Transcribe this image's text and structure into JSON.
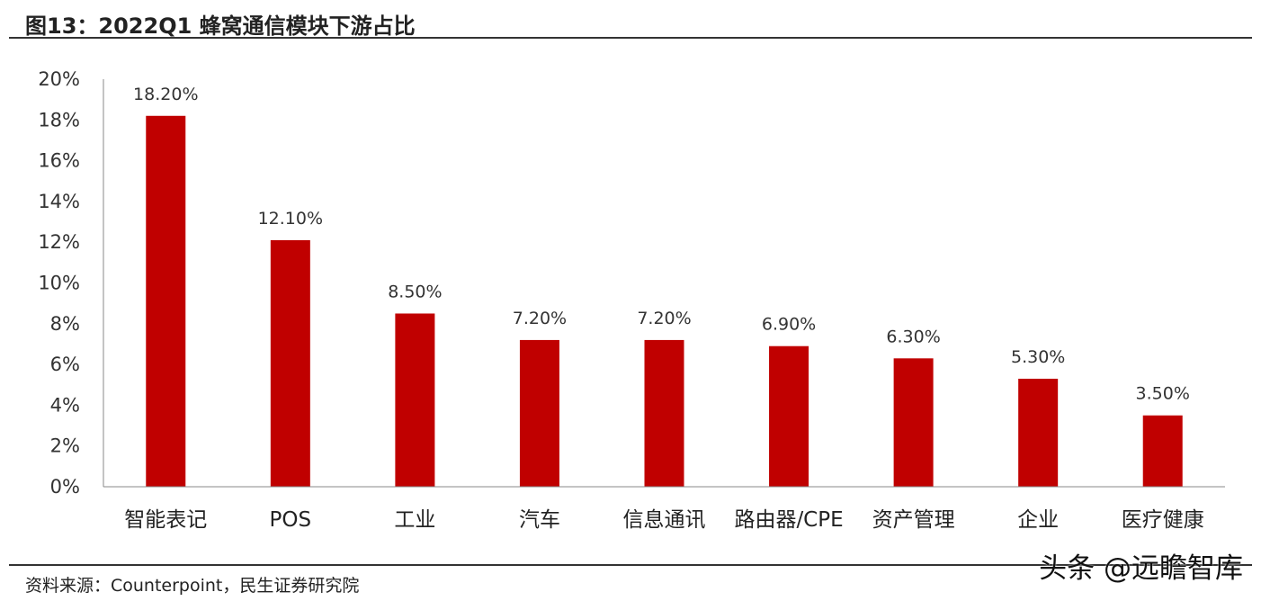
{
  "header": {
    "title": "图13：2022Q1 蜂窝通信模块下游占比"
  },
  "footer": {
    "source": "资料来源：Counterpoint，民生证券研究院",
    "watermark": "头条 @远瞻智库"
  },
  "colors": {
    "bar": "#C00000",
    "axis": "#888888"
  },
  "chart_data": {
    "type": "bar",
    "categories": [
      "智能表记",
      "POS",
      "工业",
      "汽车",
      "信息通讯",
      "路由器/CPE",
      "资产管理",
      "企业",
      "医疗健康"
    ],
    "values": [
      18.2,
      12.1,
      8.5,
      7.2,
      7.2,
      6.9,
      6.3,
      5.3,
      3.5
    ],
    "data_labels": [
      "18.20%",
      "12.10%",
      "8.50%",
      "7.20%",
      "7.20%",
      "6.90%",
      "6.30%",
      "5.30%",
      "3.50%"
    ],
    "y_ticks": [
      0,
      2,
      4,
      6,
      8,
      10,
      12,
      14,
      16,
      18,
      20
    ],
    "y_tick_labels": [
      "0%",
      "2%",
      "4%",
      "6%",
      "8%",
      "10%",
      "12%",
      "14%",
      "16%",
      "18%",
      "20%"
    ],
    "ylim": [
      0,
      20
    ],
    "grid": false,
    "legend": "none"
  }
}
